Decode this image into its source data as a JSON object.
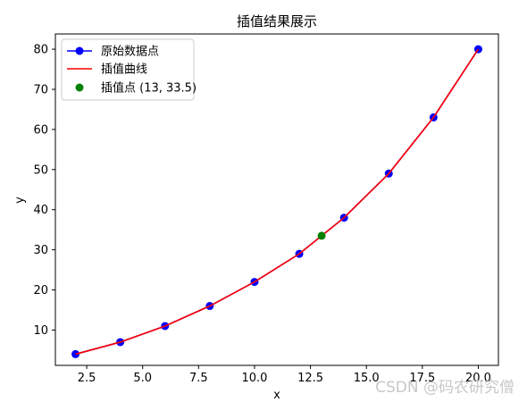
{
  "chart_data": {
    "type": "line",
    "title": "插值结果展示",
    "xlabel": "x",
    "ylabel": "y",
    "xlim": [
      1.1,
      20.9
    ],
    "ylim": [
      1.2,
      83.8
    ],
    "xticks": [
      2.5,
      5.0,
      7.5,
      10.0,
      12.5,
      15.0,
      17.5,
      20.0
    ],
    "xtick_labels": [
      "2.5",
      "5.0",
      "7.5",
      "10.0",
      "12.5",
      "15.0",
      "17.5",
      "20.0"
    ],
    "yticks": [
      10,
      20,
      30,
      40,
      50,
      60,
      70,
      80
    ],
    "ytick_labels": [
      "10",
      "20",
      "30",
      "40",
      "50",
      "60",
      "70",
      "80"
    ],
    "grid": false,
    "legend_position": "upper-left",
    "series": [
      {
        "name": "原始数据点",
        "style": "line-marker",
        "color": "#0000ff",
        "x": [
          2,
          4,
          6,
          8,
          10,
          12,
          14,
          16,
          18,
          20
        ],
        "y": [
          4,
          7,
          11,
          16,
          22,
          29,
          38,
          49,
          63,
          80
        ]
      },
      {
        "name": "插值曲线",
        "style": "line",
        "color": "#ff0000",
        "x": [
          2,
          4,
          6,
          8,
          10,
          12,
          14,
          16,
          18,
          20
        ],
        "y": [
          4,
          7,
          11,
          16,
          22,
          29,
          38,
          49,
          63,
          80
        ]
      },
      {
        "name": "插值点 (13, 33.5)",
        "style": "marker",
        "color": "#008000",
        "x": [
          13
        ],
        "y": [
          33.5
        ]
      }
    ]
  },
  "watermark": "CSDN @码农研究僧"
}
